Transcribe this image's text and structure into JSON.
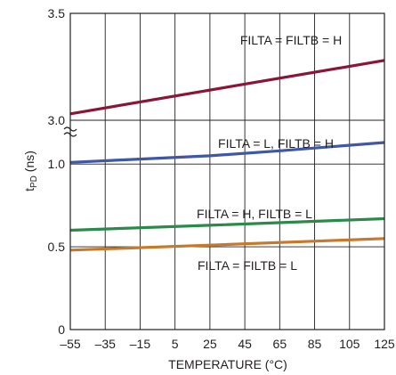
{
  "chart_data": {
    "type": "line",
    "xlabel": "TEMPERATURE (°C)",
    "ylabel_main": "t",
    "ylabel_sub": "PD",
    "ylabel_unit": " (ns)",
    "xlim": [
      -55,
      125
    ],
    "x_ticks": [
      -55,
      -35,
      -15,
      5,
      25,
      45,
      65,
      85,
      105,
      125
    ],
    "x_tick_labels": [
      "–55",
      "–35",
      "–15",
      "5",
      "25",
      "45",
      "65",
      "85",
      "105",
      "125"
    ],
    "y_axis_break": true,
    "y_segments": {
      "lower": [
        0,
        1.2
      ],
      "upper": [
        2.95,
        3.5
      ]
    },
    "y_ticks": [
      {
        "value": 0,
        "label": "0"
      },
      {
        "value": 0.5,
        "label": "0.5"
      },
      {
        "value": 1.0,
        "label": "1.0"
      },
      {
        "value": 3.0,
        "label": "3.0"
      },
      {
        "value": 3.5,
        "label": "3.5"
      }
    ],
    "grid": true,
    "series": [
      {
        "name": "FILTA = FILTB = H",
        "color": "#8b1538",
        "x": [
          -55,
          125
        ],
        "y": [
          3.03,
          3.28
        ]
      },
      {
        "name": "FILTA = L, FILTB = H",
        "color": "#3f57a6",
        "x": [
          -55,
          -15,
          25,
          65,
          125
        ],
        "y": [
          1.01,
          1.03,
          1.05,
          1.08,
          1.13
        ]
      },
      {
        "name": "FILTA = H, FILTB = L",
        "color": "#2a8a4a",
        "x": [
          -55,
          25,
          125
        ],
        "y": [
          0.6,
          0.63,
          0.67
        ]
      },
      {
        "name": "FILTA = FILTB = L",
        "color": "#c8782a",
        "x": [
          -55,
          25,
          125
        ],
        "y": [
          0.48,
          0.51,
          0.55
        ]
      }
    ]
  }
}
